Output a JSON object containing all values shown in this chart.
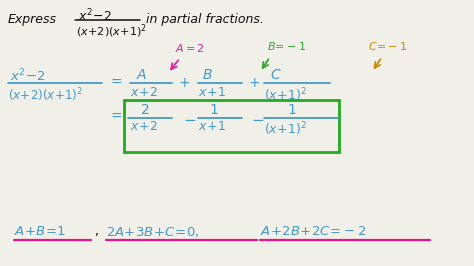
{
  "bg": "#f0f0e8",
  "blue": "#4499cc",
  "green": "#33aa33",
  "magenta": "#dd22aa",
  "orange": "#cc8800",
  "box_green": "#22aa22",
  "pink": "#ee1188",
  "black": "#111111",
  "gray": "#555555"
}
